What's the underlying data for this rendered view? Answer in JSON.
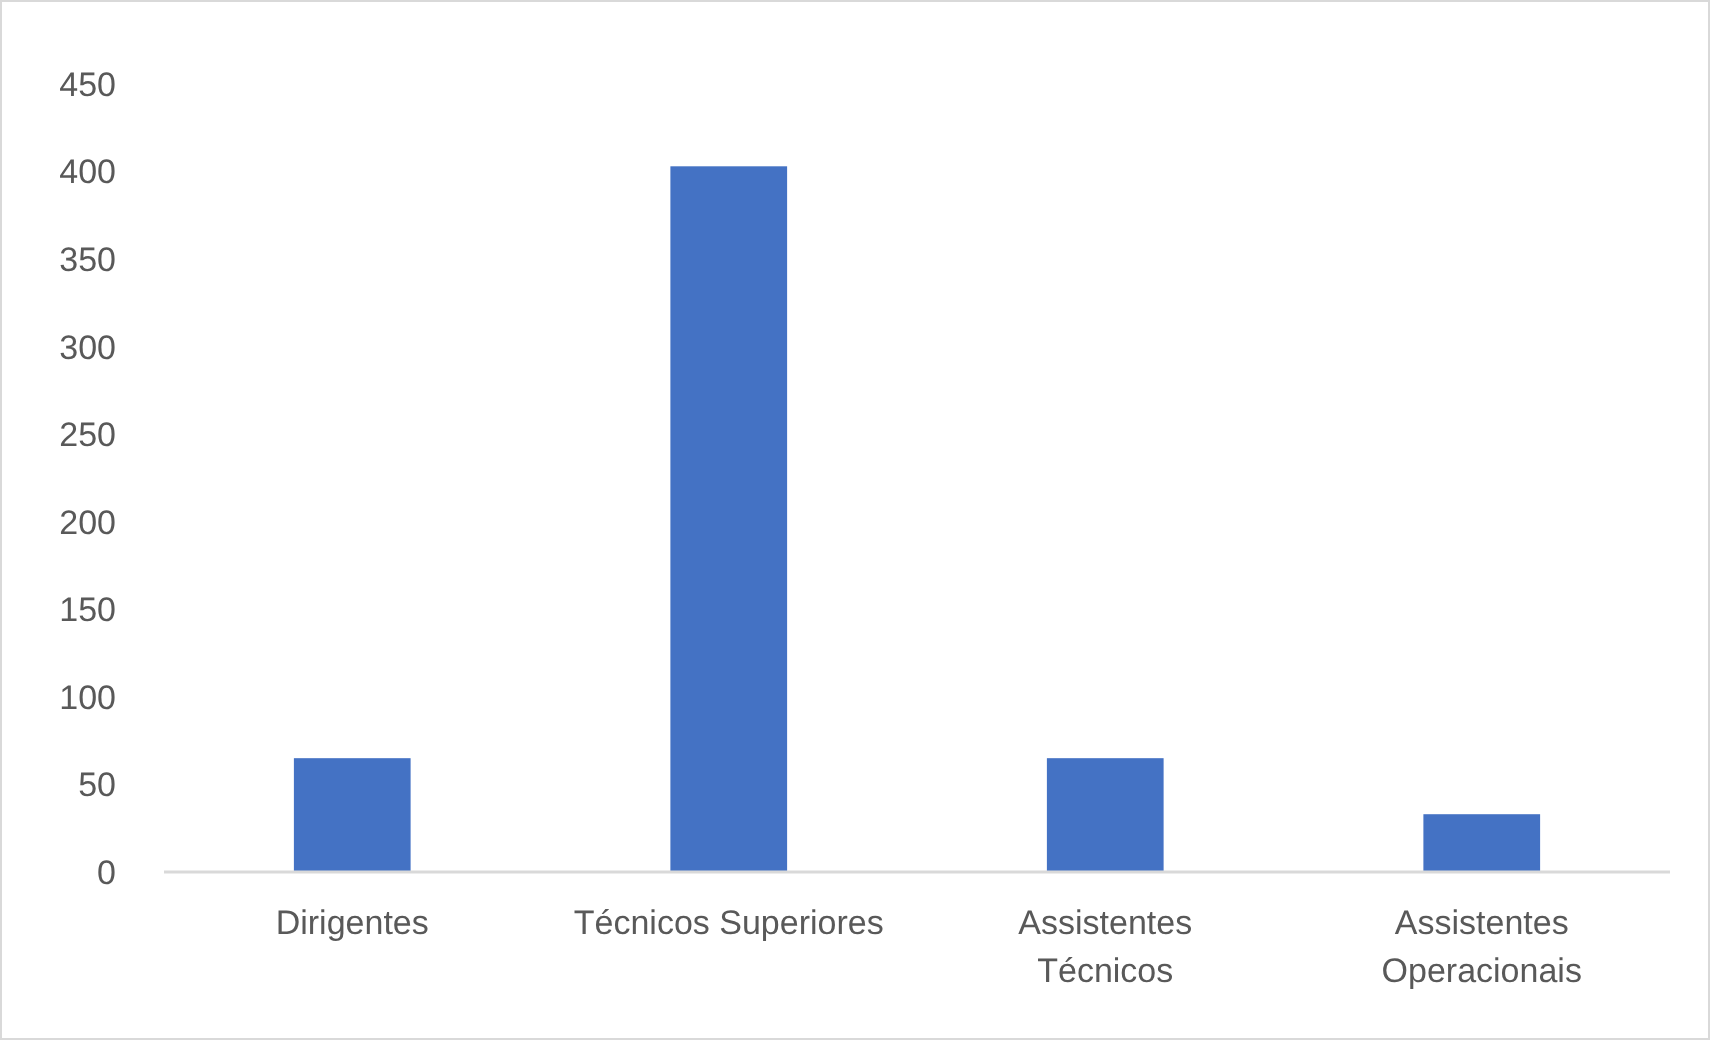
{
  "chart_data": {
    "type": "bar",
    "categories": [
      "Dirigentes",
      "Técnicos Superiores",
      "Assistentes Técnicos",
      "Assistentes Operacionais"
    ],
    "values": [
      65,
      403,
      65,
      33
    ],
    "color": "#4472c4",
    "ylim": [
      0,
      450
    ],
    "yticks": [
      0,
      50,
      100,
      150,
      200,
      250,
      300,
      350,
      400,
      450
    ],
    "grid": false
  }
}
